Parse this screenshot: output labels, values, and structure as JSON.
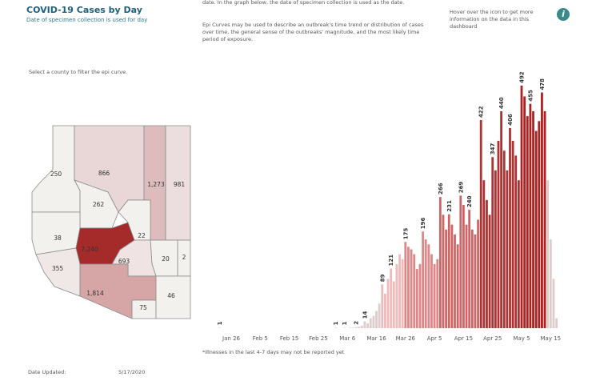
{
  "header": {
    "title": "COVID-19 Cases by Day",
    "subtitle": "Date of specimen collection is used for day"
  },
  "description": {
    "p1": "An epi curve is a visual display of cases associated with an outbreak by a specific date. In the graph below, the date of specimen collection is used as the date.",
    "p2": "Epi Curves may be used to describe an outbreak's time trend or distribution of cases over time, the general sense of the outbreaks' magnitude, and the most likely time period of exposure."
  },
  "info": {
    "text": "Hover over the icon to get more information on the data in this dashboard",
    "icon": "i"
  },
  "map": {
    "prompt": "Select a county to filter the epi curve.",
    "values": [
      250,
      866,
      1273,
      981,
      262,
      38,
      7240,
      22,
      2,
      20,
      693,
      355,
      1814,
      75,
      46
    ],
    "value_labels": [
      "250",
      "866",
      "1,273",
      "981",
      "262",
      "38",
      "7,240",
      "22",
      "2",
      "20",
      "693",
      "355",
      "1,814",
      "75",
      "46"
    ],
    "colors": [
      "#f2f1ee",
      "#e9d6d6",
      "#dcbcbc",
      "#ecdede",
      "#f2f1ee",
      "#f2f1ee",
      "#a52a2a",
      "#f2f1ee",
      "#f2f1ee",
      "#f2f1ee",
      "#efe3e3",
      "#f0e7e7",
      "#d6a6a6",
      "#f2f1ee",
      "#f2f1ee"
    ]
  },
  "chart_data": {
    "type": "bar",
    "ylim": [
      0,
      500
    ],
    "categories": [
      null,
      null,
      null,
      null,
      "Jan 26",
      null,
      null,
      null,
      null,
      null,
      null,
      null,
      null,
      null,
      "Feb 5",
      null,
      null,
      null,
      null,
      null,
      null,
      null,
      null,
      null,
      "Feb 15",
      null,
      null,
      null,
      null,
      null,
      null,
      null,
      null,
      null,
      "Feb 25",
      null,
      null,
      null,
      null,
      null,
      null,
      null,
      null,
      null,
      "Mar 6",
      null,
      null,
      null,
      null,
      null,
      null,
      null,
      null,
      null,
      "Mar 16",
      null,
      null,
      null,
      null,
      null,
      null,
      null,
      null,
      null,
      "Mar 26",
      null,
      null,
      null,
      null,
      null,
      null,
      null,
      null,
      null,
      "Apr 5",
      null,
      null,
      null,
      null,
      null,
      null,
      null,
      null,
      null,
      "Apr 15",
      null,
      null,
      null,
      null,
      null,
      null,
      null,
      null,
      null,
      "Apr 25",
      null,
      null,
      null,
      null,
      null,
      null,
      null,
      null,
      null,
      "May 5",
      null,
      null,
      null,
      null,
      null,
      null,
      null,
      null,
      null,
      "May 15",
      null,
      null
    ],
    "values": [
      1,
      0,
      0,
      0,
      0,
      0,
      0,
      0,
      0,
      0,
      0,
      0,
      0,
      0,
      0,
      0,
      0,
      0,
      0,
      0,
      0,
      0,
      0,
      0,
      0,
      0,
      0,
      0,
      0,
      0,
      0,
      0,
      0,
      0,
      0,
      0,
      0,
      0,
      0,
      0,
      1,
      0,
      0,
      1,
      0,
      1,
      1,
      2,
      3,
      5,
      14,
      10,
      20,
      25,
      35,
      50,
      89,
      70,
      100,
      121,
      95,
      130,
      150,
      140,
      175,
      165,
      160,
      150,
      120,
      130,
      196,
      180,
      170,
      150,
      130,
      140,
      266,
      230,
      200,
      231,
      210,
      190,
      170,
      269,
      250,
      210,
      240,
      200,
      190,
      220,
      422,
      300,
      260,
      230,
      347,
      320,
      380,
      440,
      360,
      320,
      406,
      380,
      350,
      300,
      492,
      470,
      430,
      455,
      440,
      400,
      420,
      478,
      440,
      300,
      180,
      100,
      20
    ],
    "value_labels": [
      "1",
      null,
      null,
      null,
      null,
      null,
      null,
      null,
      null,
      null,
      null,
      null,
      null,
      null,
      null,
      null,
      null,
      null,
      null,
      null,
      null,
      null,
      null,
      null,
      null,
      null,
      null,
      null,
      null,
      null,
      null,
      null,
      null,
      null,
      null,
      null,
      null,
      null,
      null,
      null,
      "1",
      null,
      null,
      "1",
      null,
      null,
      null,
      "2",
      null,
      null,
      "14",
      null,
      null,
      null,
      null,
      null,
      "89",
      null,
      null,
      "121",
      null,
      null,
      null,
      null,
      "175",
      null,
      null,
      null,
      null,
      null,
      "196",
      null,
      null,
      null,
      null,
      null,
      "266",
      null,
      null,
      "231",
      null,
      null,
      null,
      "269",
      null,
      null,
      "240",
      null,
      null,
      null,
      "422",
      null,
      null,
      null,
      "347",
      null,
      null,
      "440",
      null,
      null,
      "406",
      null,
      null,
      null,
      "492",
      null,
      null,
      "455",
      null,
      null,
      null,
      "478",
      null,
      null,
      null,
      null,
      null
    ],
    "colors": [
      "#dcc",
      "#dcc",
      "#dcc",
      "#dcc",
      "#dcc",
      "#dcc",
      "#dcc",
      "#dcc",
      "#dcc",
      "#dcc",
      "#dcc",
      "#dcc",
      "#dcc",
      "#dcc",
      "#dcc",
      "#dcc",
      "#dcc",
      "#dcc",
      "#dcc",
      "#dcc",
      "#dcc",
      "#dcc",
      "#dcc",
      "#dcc",
      "#dcc",
      "#dcc",
      "#dcc",
      "#dcc",
      "#dcc",
      "#dcc",
      "#dcc",
      "#dcc",
      "#dcc",
      "#dcc",
      "#dcc",
      "#dcc",
      "#dcc",
      "#dcc",
      "#dcc",
      "#dcc",
      "#dcc",
      "#dcc",
      "#dcc",
      "#dcc",
      "#dcc",
      "#dcc",
      "#dcc",
      "#dcc",
      "#dcc",
      "#dcc",
      "#dcc",
      "#dcc",
      "#dcc",
      "#dcc",
      "#dcc",
      "#dcc",
      "#ebb",
      "#ebb",
      "#ebb",
      "#ebb",
      "#ebb",
      "#ebb",
      "#ebb",
      "#ebb",
      "#d88",
      "#d88",
      "#d88",
      "#d88",
      "#d88",
      "#d88",
      "#d88",
      "#d88",
      "#d88",
      "#d88",
      "#d88",
      "#d88",
      "#c66",
      "#c66",
      "#c66",
      "#c66",
      "#c66",
      "#c66",
      "#c66",
      "#c66",
      "#c66",
      "#c66",
      "#c66",
      "#c66",
      "#c66",
      "#c66",
      "#a33",
      "#a33",
      "#a33",
      "#a33",
      "#a33",
      "#a33",
      "#a33",
      "#a33",
      "#a33",
      "#a33",
      "#a33",
      "#a33",
      "#a33",
      "#a33",
      "#a22",
      "#a22",
      "#a22",
      "#a22",
      "#a22",
      "#a22",
      "#a22",
      "#a22",
      "#a22",
      "#dcc",
      "#dcc",
      "#dcc",
      "#dcc"
    ],
    "footnote": "*Illnesses in the last 4-7 days may not be reported yet"
  },
  "footer": {
    "label": "Date Updated:",
    "date": "5/17/2020"
  }
}
